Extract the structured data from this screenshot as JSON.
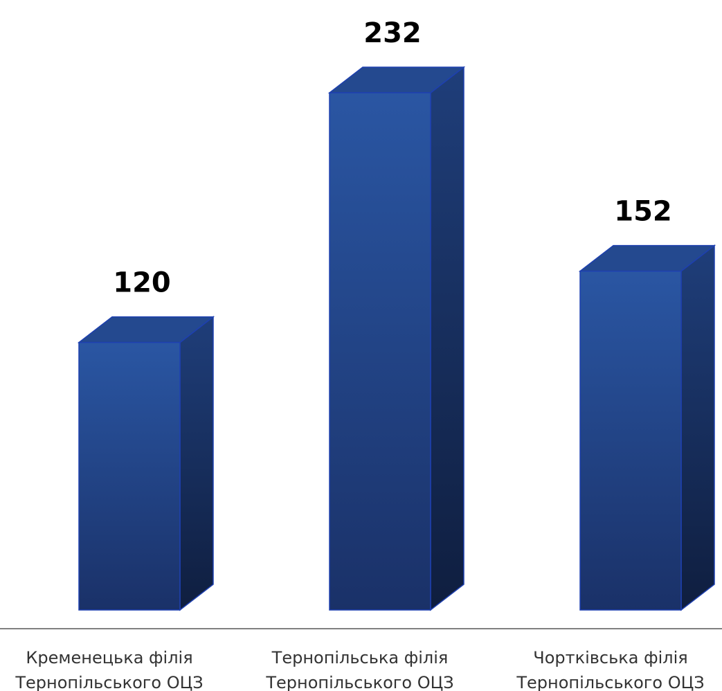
{
  "chart_data": {
    "type": "bar",
    "title": "",
    "xlabel": "",
    "ylabel": "",
    "categories": [
      [
        "Кременецька філія",
        "Тернопільського ОЦЗ"
      ],
      [
        "Тернопільська філія",
        "Тернопільського ОЦЗ"
      ],
      [
        "Чортківська філія",
        "Тернопільського ОЦЗ"
      ]
    ],
    "values": [
      120,
      232,
      152
    ],
    "data_labels": [
      "120",
      "232",
      "152"
    ],
    "ylim": [
      0,
      232
    ],
    "grid": false,
    "legend": "none",
    "style": "3d-column",
    "colors": {
      "bar_front_top": "#2a56a3",
      "bar_front_bottom": "#1a3168",
      "bar_side_top": "#1f3e7a",
      "bar_side_bottom": "#0f1e3f",
      "bar_top_face": "#24498f",
      "bar_edge": "#1e40b0",
      "axis_line": "#7f7f7f",
      "label_text": "#000000",
      "category_text": "#333333"
    }
  }
}
